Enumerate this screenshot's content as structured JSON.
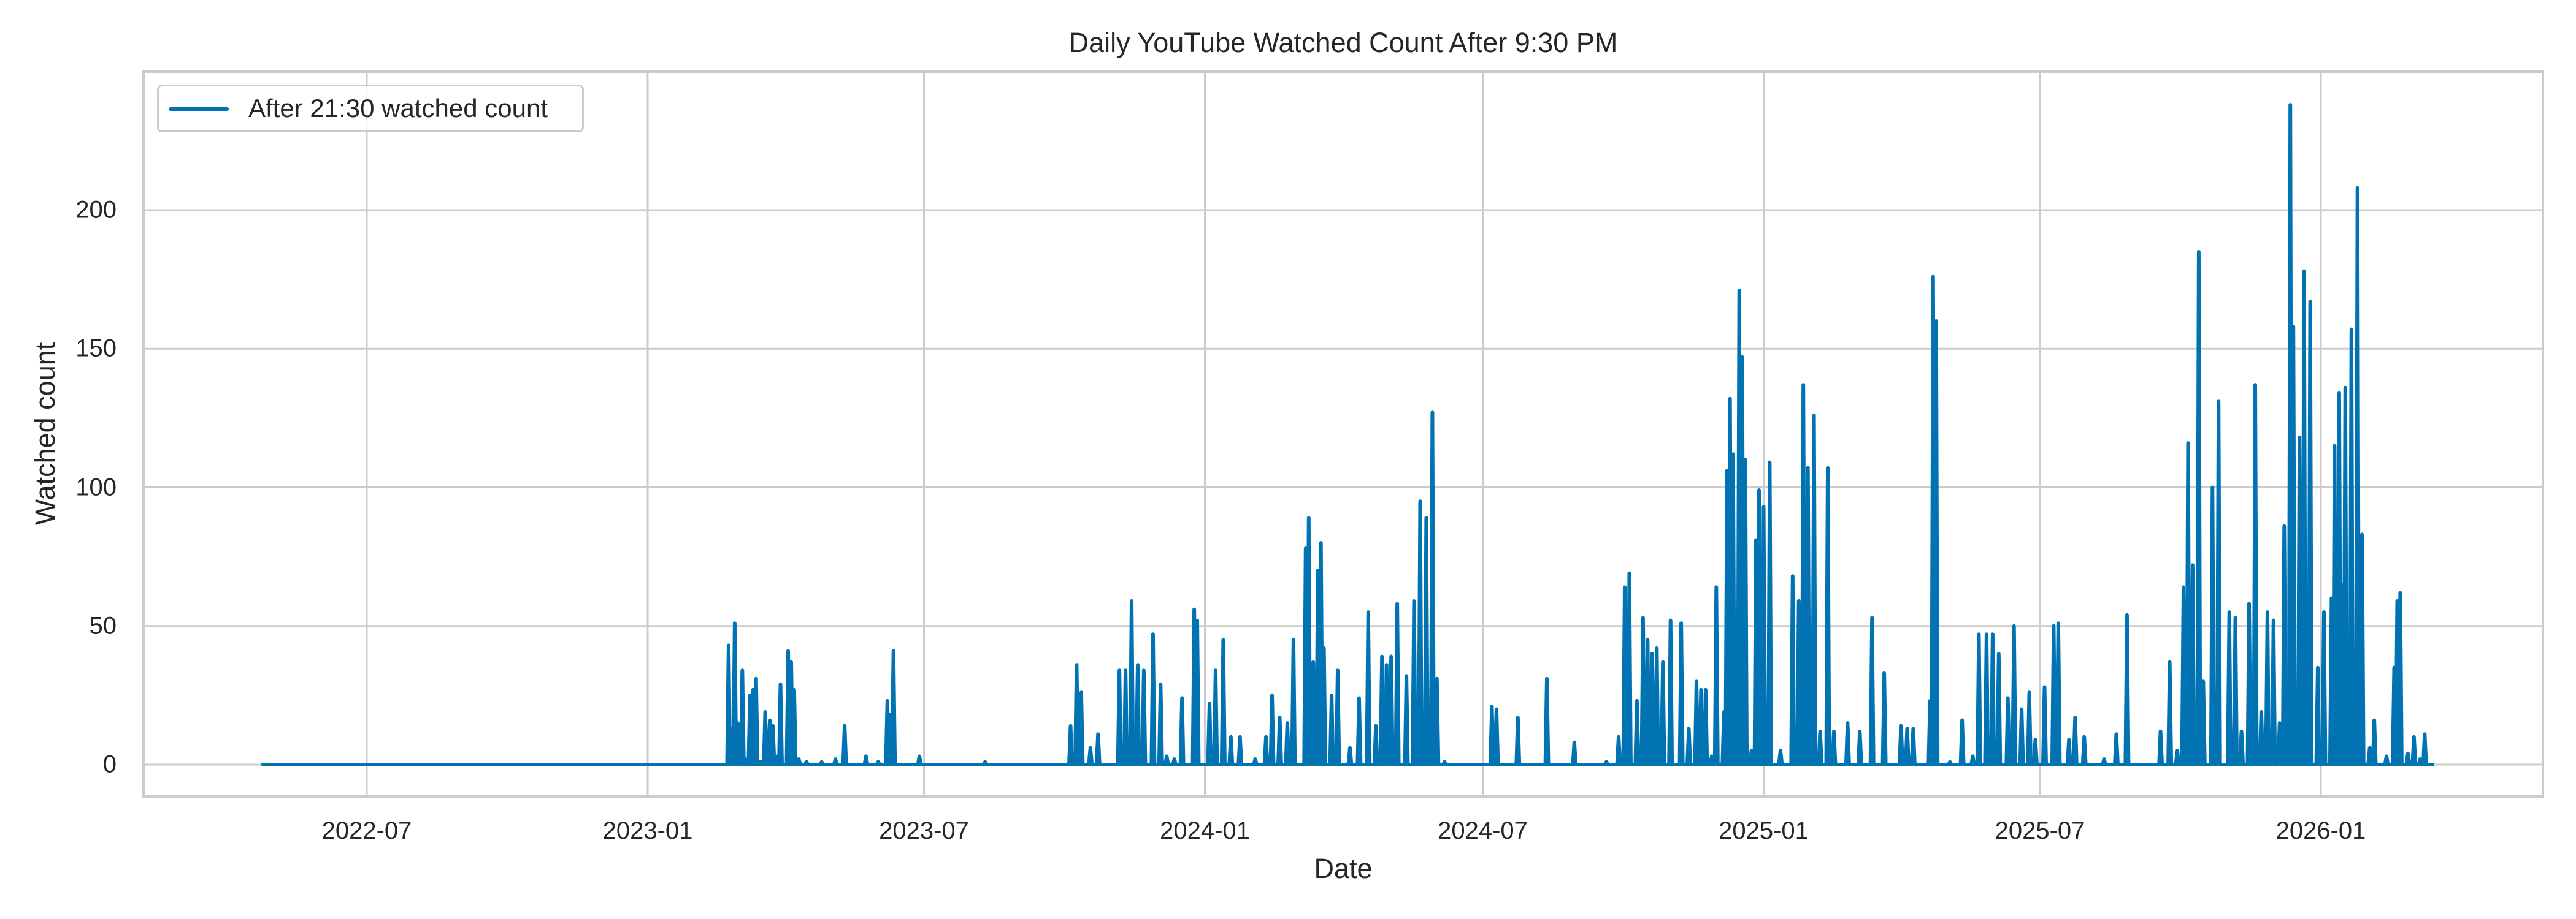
{
  "chart_data": {
    "type": "line",
    "title": "Daily YouTube Watched Count After 9:30 PM",
    "xlabel": "Date",
    "ylabel": "Watched count",
    "x_tick_labels": [
      "2022-07",
      "2023-01",
      "2023-07",
      "2024-01",
      "2024-07",
      "2025-01",
      "2025-07",
      "2026-01"
    ],
    "y_tick_labels": [
      "0",
      "50",
      "100",
      "150",
      "200"
    ],
    "y_ticks": [
      0,
      50,
      100,
      150,
      200
    ],
    "xlim": [
      "2022-03-01",
      "2026-04-25"
    ],
    "ylim": [
      -12,
      250
    ],
    "grid": true,
    "legend_position": "upper left",
    "series": [
      {
        "name": "After 21:30 watched count",
        "color": "#0173b2",
        "note": "Daily values; zero on unlisted days between 2022-04-24 and 2026-03-15. Peaks estimated from gridlines.",
        "points": [
          [
            "2022-04-24",
            0
          ],
          [
            "2023-02-21",
            0
          ],
          [
            "2023-02-23",
            43
          ],
          [
            "2023-02-25",
            13
          ],
          [
            "2023-02-27",
            51
          ],
          [
            "2023-03-01",
            15
          ],
          [
            "2023-03-04",
            34
          ],
          [
            "2023-03-06",
            2
          ],
          [
            "2023-03-09",
            25
          ],
          [
            "2023-03-11",
            27
          ],
          [
            "2023-03-13",
            31
          ],
          [
            "2023-03-16",
            1
          ],
          [
            "2023-03-19",
            19
          ],
          [
            "2023-03-22",
            16
          ],
          [
            "2023-03-24",
            14
          ],
          [
            "2023-03-27",
            3
          ],
          [
            "2023-03-29",
            29
          ],
          [
            "2023-04-01",
            0
          ],
          [
            "2023-04-03",
            41
          ],
          [
            "2023-04-05",
            37
          ],
          [
            "2023-04-07",
            27
          ],
          [
            "2023-04-10",
            2
          ],
          [
            "2023-04-15",
            1
          ],
          [
            "2023-04-25",
            1
          ],
          [
            "2023-05-04",
            2
          ],
          [
            "2023-05-10",
            14
          ],
          [
            "2023-05-24",
            3
          ],
          [
            "2023-06-01",
            1
          ],
          [
            "2023-06-07",
            23
          ],
          [
            "2023-06-09",
            18
          ],
          [
            "2023-06-11",
            41
          ],
          [
            "2023-06-14",
            0
          ],
          [
            "2023-06-28",
            3
          ],
          [
            "2023-08-10",
            1
          ],
          [
            "2023-10-01",
            0
          ],
          [
            "2023-10-05",
            14
          ],
          [
            "2023-10-09",
            36
          ],
          [
            "2023-10-12",
            26
          ],
          [
            "2023-10-18",
            6
          ],
          [
            "2023-10-23",
            11
          ],
          [
            "2023-11-06",
            34
          ],
          [
            "2023-11-10",
            34
          ],
          [
            "2023-11-14",
            59
          ],
          [
            "2023-11-18",
            36
          ],
          [
            "2023-11-22",
            34
          ],
          [
            "2023-11-28",
            47
          ],
          [
            "2023-12-03",
            29
          ],
          [
            "2023-12-07",
            3
          ],
          [
            "2023-12-12",
            2
          ],
          [
            "2023-12-17",
            24
          ],
          [
            "2023-12-25",
            56
          ],
          [
            "2023-12-27",
            52
          ],
          [
            "2024-01-04",
            22
          ],
          [
            "2024-01-08",
            34
          ],
          [
            "2024-01-13",
            45
          ],
          [
            "2024-01-18",
            10
          ],
          [
            "2024-01-24",
            10
          ],
          [
            "2024-02-03",
            2
          ],
          [
            "2024-02-10",
            10
          ],
          [
            "2024-02-14",
            25
          ],
          [
            "2024-02-19",
            17
          ],
          [
            "2024-02-24",
            15
          ],
          [
            "2024-02-28",
            45
          ],
          [
            "2024-03-07",
            78
          ],
          [
            "2024-03-09",
            89
          ],
          [
            "2024-03-12",
            37
          ],
          [
            "2024-03-15",
            70
          ],
          [
            "2024-03-17",
            80
          ],
          [
            "2024-03-19",
            42
          ],
          [
            "2024-03-24",
            25
          ],
          [
            "2024-03-28",
            34
          ],
          [
            "2024-04-05",
            6
          ],
          [
            "2024-04-11",
            24
          ],
          [
            "2024-04-17",
            55
          ],
          [
            "2024-04-22",
            14
          ],
          [
            "2024-04-26",
            39
          ],
          [
            "2024-04-29",
            36
          ],
          [
            "2024-05-02",
            39
          ],
          [
            "2024-05-06",
            58
          ],
          [
            "2024-05-12",
            32
          ],
          [
            "2024-05-17",
            59
          ],
          [
            "2024-05-21",
            95
          ],
          [
            "2024-05-25",
            89
          ],
          [
            "2024-05-29",
            127
          ],
          [
            "2024-06-01",
            31
          ],
          [
            "2024-06-06",
            1
          ],
          [
            "2024-06-20",
            0
          ],
          [
            "2024-07-07",
            21
          ],
          [
            "2024-07-10",
            20
          ],
          [
            "2024-07-24",
            17
          ],
          [
            "2024-08-12",
            31
          ],
          [
            "2024-08-30",
            8
          ],
          [
            "2024-09-20",
            1
          ],
          [
            "2024-09-28",
            10
          ],
          [
            "2024-10-02",
            64
          ],
          [
            "2024-10-05",
            69
          ],
          [
            "2024-10-10",
            23
          ],
          [
            "2024-10-14",
            53
          ],
          [
            "2024-10-17",
            45
          ],
          [
            "2024-10-20",
            40
          ],
          [
            "2024-10-23",
            42
          ],
          [
            "2024-10-27",
            37
          ],
          [
            "2024-11-01",
            52
          ],
          [
            "2024-11-08",
            51
          ],
          [
            "2024-11-13",
            13
          ],
          [
            "2024-11-18",
            30
          ],
          [
            "2024-11-21",
            27
          ],
          [
            "2024-11-24",
            27
          ],
          [
            "2024-11-28",
            3
          ],
          [
            "2024-12-01",
            64
          ],
          [
            "2024-12-06",
            19
          ],
          [
            "2024-12-08",
            106
          ],
          [
            "2024-12-10",
            132
          ],
          [
            "2024-12-12",
            112
          ],
          [
            "2024-12-14",
            43
          ],
          [
            "2024-12-16",
            171
          ],
          [
            "2024-12-18",
            147
          ],
          [
            "2024-12-20",
            110
          ],
          [
            "2024-12-24",
            5
          ],
          [
            "2024-12-27",
            81
          ],
          [
            "2024-12-29",
            99
          ],
          [
            "2025-01-01",
            93
          ],
          [
            "2025-01-05",
            109
          ],
          [
            "2025-01-12",
            5
          ],
          [
            "2025-01-20",
            68
          ],
          [
            "2025-01-24",
            59
          ],
          [
            "2025-01-27",
            137
          ],
          [
            "2025-01-30",
            107
          ],
          [
            "2025-02-03",
            126
          ],
          [
            "2025-02-07",
            12
          ],
          [
            "2025-02-12",
            107
          ],
          [
            "2025-02-16",
            12
          ],
          [
            "2025-02-25",
            15
          ],
          [
            "2025-03-05",
            12
          ],
          [
            "2025-03-13",
            53
          ],
          [
            "2025-03-21",
            33
          ],
          [
            "2025-04-01",
            14
          ],
          [
            "2025-04-05",
            13
          ],
          [
            "2025-04-09",
            13
          ],
          [
            "2025-04-20",
            23
          ],
          [
            "2025-04-22",
            176
          ],
          [
            "2025-04-24",
            160
          ],
          [
            "2025-05-03",
            1
          ],
          [
            "2025-05-11",
            16
          ],
          [
            "2025-05-18",
            3
          ],
          [
            "2025-05-22",
            47
          ],
          [
            "2025-05-27",
            47
          ],
          [
            "2025-05-31",
            47
          ],
          [
            "2025-06-04",
            40
          ],
          [
            "2025-06-10",
            24
          ],
          [
            "2025-06-14",
            50
          ],
          [
            "2025-06-19",
            20
          ],
          [
            "2025-06-24",
            26
          ],
          [
            "2025-06-28",
            9
          ],
          [
            "2025-07-04",
            28
          ],
          [
            "2025-07-10",
            50
          ],
          [
            "2025-07-13",
            51
          ],
          [
            "2025-07-20",
            9
          ],
          [
            "2025-07-24",
            17
          ],
          [
            "2025-07-30",
            10
          ],
          [
            "2025-08-12",
            2
          ],
          [
            "2025-08-20",
            11
          ],
          [
            "2025-08-27",
            54
          ],
          [
            "2025-09-05",
            0
          ],
          [
            "2025-09-18",
            12
          ],
          [
            "2025-09-24",
            37
          ],
          [
            "2025-09-29",
            5
          ],
          [
            "2025-10-03",
            64
          ],
          [
            "2025-10-06",
            116
          ],
          [
            "2025-10-09",
            72
          ],
          [
            "2025-10-13",
            185
          ],
          [
            "2025-10-16",
            30
          ],
          [
            "2025-10-22",
            100
          ],
          [
            "2025-10-26",
            131
          ],
          [
            "2025-11-02",
            55
          ],
          [
            "2025-11-06",
            53
          ],
          [
            "2025-11-10",
            12
          ],
          [
            "2025-11-15",
            58
          ],
          [
            "2025-11-19",
            137
          ],
          [
            "2025-11-23",
            19
          ],
          [
            "2025-11-27",
            55
          ],
          [
            "2025-12-01",
            52
          ],
          [
            "2025-12-05",
            15
          ],
          [
            "2025-12-08",
            86
          ],
          [
            "2025-12-12",
            238
          ],
          [
            "2025-12-14",
            158
          ],
          [
            "2025-12-18",
            118
          ],
          [
            "2025-12-21",
            178
          ],
          [
            "2025-12-25",
            167
          ],
          [
            "2025-12-30",
            35
          ],
          [
            "2026-01-03",
            55
          ],
          [
            "2026-01-08",
            60
          ],
          [
            "2026-01-10",
            115
          ],
          [
            "2026-01-13",
            134
          ],
          [
            "2026-01-15",
            65
          ],
          [
            "2026-01-17",
            136
          ],
          [
            "2026-01-21",
            157
          ],
          [
            "2026-01-25",
            208
          ],
          [
            "2026-01-28",
            83
          ],
          [
            "2026-02-02",
            6
          ],
          [
            "2026-02-05",
            16
          ],
          [
            "2026-02-13",
            3
          ],
          [
            "2026-02-18",
            35
          ],
          [
            "2026-02-20",
            59
          ],
          [
            "2026-02-22",
            62
          ],
          [
            "2026-02-27",
            4
          ],
          [
            "2026-03-03",
            10
          ],
          [
            "2026-03-07",
            2
          ],
          [
            "2026-03-10",
            11
          ],
          [
            "2026-03-15",
            0
          ]
        ]
      }
    ]
  },
  "legend": {
    "label": "After 21:30 watched count",
    "color": "#0173b2"
  },
  "style": {
    "line_color": "#0173b2",
    "grid_color": "#cccccc",
    "frame_color": "#cccccc",
    "text_color": "#262626",
    "background": "#ffffff"
  }
}
